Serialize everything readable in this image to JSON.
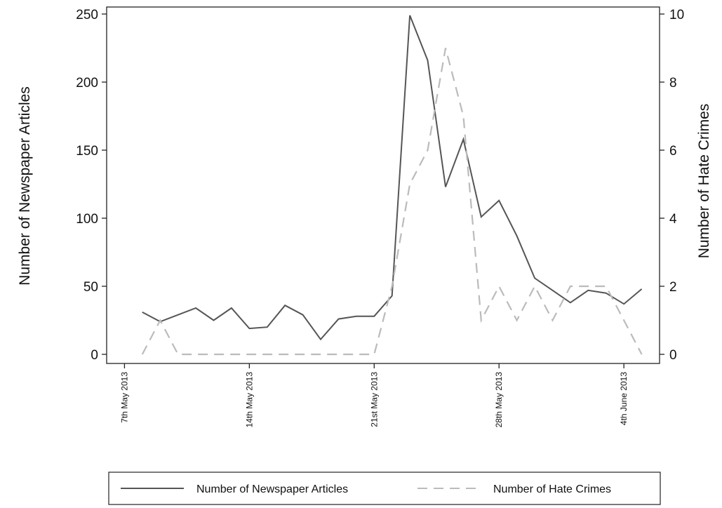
{
  "chart_data": {
    "type": "line",
    "x_axis": {
      "type": "date",
      "range": [
        "2013-05-06",
        "2013-06-06"
      ],
      "ticks": [
        {
          "date": "2013-05-07",
          "label": "7th May 2013"
        },
        {
          "date": "2013-05-14",
          "label": "14th May 2013"
        },
        {
          "date": "2013-05-21",
          "label": "21st May 2013"
        },
        {
          "date": "2013-05-28",
          "label": "28th May 2013"
        },
        {
          "date": "2013-06-04",
          "label": "4th June 2013"
        }
      ],
      "label_rotation": "vertical"
    },
    "y_left": {
      "label": "Number of Newspaper Articles",
      "range": [
        0,
        250
      ],
      "ticks": [
        0,
        50,
        100,
        150,
        200,
        250
      ]
    },
    "y_right": {
      "label": "Number of Hate Crimes",
      "range": [
        0,
        10
      ],
      "ticks": [
        0,
        2,
        4,
        6,
        8,
        10
      ]
    },
    "grid": false,
    "legend_position": "bottom",
    "series": [
      {
        "name": "Number of Newspaper Articles",
        "axis": "left",
        "line_style": "solid",
        "color": "#555555",
        "x": [
          "2013-05-08",
          "2013-05-09",
          "2013-05-10",
          "2013-05-11",
          "2013-05-12",
          "2013-05-13",
          "2013-05-14",
          "2013-05-15",
          "2013-05-16",
          "2013-05-17",
          "2013-05-18",
          "2013-05-19",
          "2013-05-20",
          "2013-05-21",
          "2013-05-22",
          "2013-05-23",
          "2013-05-24",
          "2013-05-25",
          "2013-05-26",
          "2013-05-27",
          "2013-05-28",
          "2013-05-29",
          "2013-05-30",
          "2013-05-31",
          "2013-06-01",
          "2013-06-02",
          "2013-06-03",
          "2013-06-04",
          "2013-06-05"
        ],
        "values": [
          31,
          24,
          29,
          34,
          25,
          34,
          19,
          20,
          36,
          29,
          11,
          26,
          28,
          28,
          43,
          249,
          216,
          123,
          158,
          101,
          113,
          87,
          56,
          47,
          38,
          47,
          45,
          37,
          48
        ]
      },
      {
        "name": "Number of Hate Crimes",
        "axis": "right",
        "line_style": "dashed",
        "color": "#bbbbbb",
        "x": [
          "2013-05-08",
          "2013-05-09",
          "2013-05-10",
          "2013-05-11",
          "2013-05-12",
          "2013-05-13",
          "2013-05-14",
          "2013-05-15",
          "2013-05-16",
          "2013-05-17",
          "2013-05-18",
          "2013-05-19",
          "2013-05-20",
          "2013-05-21",
          "2013-05-22",
          "2013-05-23",
          "2013-05-24",
          "2013-05-25",
          "2013-05-26",
          "2013-05-27",
          "2013-05-28",
          "2013-05-29",
          "2013-05-30",
          "2013-05-31",
          "2013-06-01",
          "2013-06-02",
          "2013-06-03",
          "2013-06-04",
          "2013-06-05"
        ],
        "values": [
          0,
          1,
          0,
          0,
          0,
          0,
          0,
          0,
          0,
          0,
          0,
          0,
          0,
          0,
          2,
          5,
          6,
          9,
          7,
          1,
          2,
          1,
          2,
          1,
          2,
          2,
          2,
          1,
          0
        ]
      }
    ]
  }
}
